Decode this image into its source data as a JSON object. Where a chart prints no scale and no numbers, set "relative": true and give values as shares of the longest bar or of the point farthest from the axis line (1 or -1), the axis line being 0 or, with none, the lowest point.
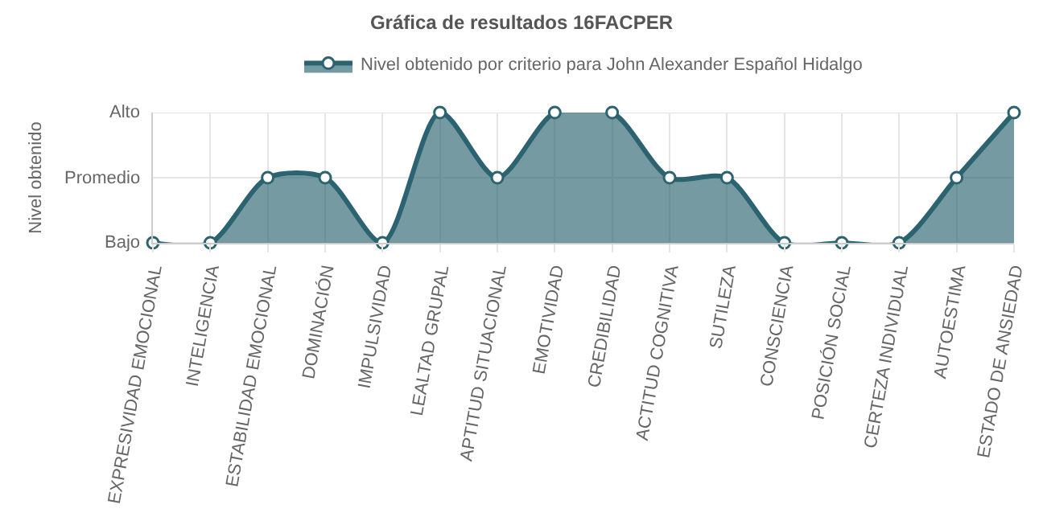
{
  "chart_data": {
    "type": "area",
    "title": "Gráfica de resultados 16FACPER",
    "ylabel": "Nivel obtenido",
    "categories": [
      "EXPRESIVIDAD EMOCIONAL",
      "INTELIGENCIA",
      "ESTABILIDAD EMOCIONAL",
      "DOMINACIÓN",
      "IMPULSIVIDAD",
      "LEALTAD GRUPAL",
      "APTITUD SITUACIONAL",
      "EMOTIVIDAD",
      "CREDIBILIDAD",
      "ACTITUD COGNITIVA",
      "SUTILEZA",
      "CONSCIENCIA",
      "POSICIÓN SOCIAL",
      "CERTEZA INDIVIDUAL",
      "AUTOESTIMA",
      "ESTADO DE ANSIEDAD"
    ],
    "series": [
      {
        "name": "Nivel obtenido por criterio para John Alexander Español Hidalgo",
        "color": "#2b6470",
        "values": [
          0,
          0,
          0.5,
          0.5,
          0,
          1,
          0.5,
          1,
          1,
          0.5,
          0.5,
          0,
          0,
          0,
          0.5,
          1
        ]
      }
    ],
    "relative": true,
    "ref_lines": [
      {
        "axis": "y",
        "value": 0,
        "label": "Bajo"
      },
      {
        "axis": "y",
        "value": 0.5,
        "label": "Promedio"
      },
      {
        "axis": "y",
        "value": 1,
        "label": "Alto"
      }
    ],
    "grid": true,
    "legend": "top",
    "marker": "circle",
    "line_style": "solid"
  }
}
